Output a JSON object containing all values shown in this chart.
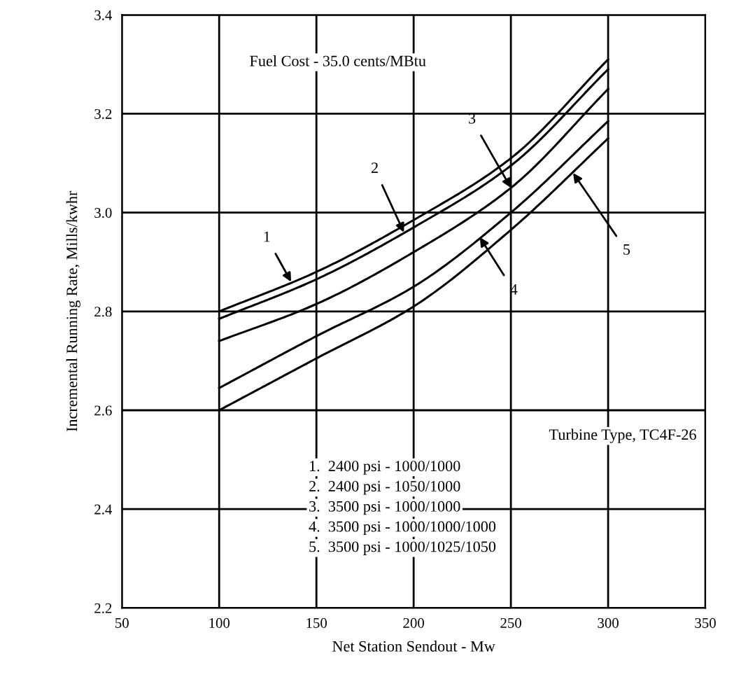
{
  "chart_data": {
    "type": "line",
    "xlabel": "Net Station Sendout - Mw",
    "ylabel": "Incremental Running Rate, Mills/kwhr",
    "x": [
      100,
      150,
      200,
      250,
      300
    ],
    "series": [
      {
        "color": "#000000",
        "values": [
          2.8,
          2.88,
          2.985,
          3.11,
          3.31
        ]
      },
      {
        "color": "#000000",
        "values": [
          2.785,
          2.865,
          2.97,
          3.095,
          3.29
        ]
      },
      {
        "color": "#000000",
        "values": [
          2.74,
          2.815,
          2.92,
          3.05,
          3.25
        ]
      },
      {
        "color": "#000000",
        "values": [
          2.645,
          2.75,
          2.85,
          3.0,
          3.185
        ]
      },
      {
        "color": "#000000",
        "values": [
          2.6,
          2.705,
          2.81,
          2.965,
          3.15
        ]
      }
    ],
    "xlim": [
      50,
      350
    ],
    "xticks": [
      50,
      100,
      150,
      200,
      250,
      300,
      350
    ],
    "ylim": [
      2.2,
      3.4
    ],
    "yticks": [
      2.2,
      2.4,
      2.6,
      2.8,
      {
        "value": 3.0,
        "label": "3.0"
      },
      3.2,
      3.4
    ],
    "grid": true,
    "marker": "none",
    "line_style": "solid",
    "annotations": [
      "Fuel Cost - 35.0 cents/MBtu",
      "Turbine Type, TC4F-26",
      "1.  2400 psi - 1000/1000",
      "2.  2400 psi - 1050/1000",
      "3.  3500 psi - 1000/1000",
      "4.  3500 psi - 1000/1000/1000",
      "5.  3500 psi - 1000/1025/1050",
      {
        "text": "1",
        "x": 137,
        "y": 2.86
      },
      {
        "text": "2",
        "x": 195,
        "y": 2.96
      },
      {
        "text": "3",
        "x": 250,
        "y": 3.05
      },
      {
        "text": "4",
        "x": 234,
        "y": 2.95
      },
      {
        "text": "5",
        "x": 282,
        "y": 3.08
      }
    ]
  }
}
